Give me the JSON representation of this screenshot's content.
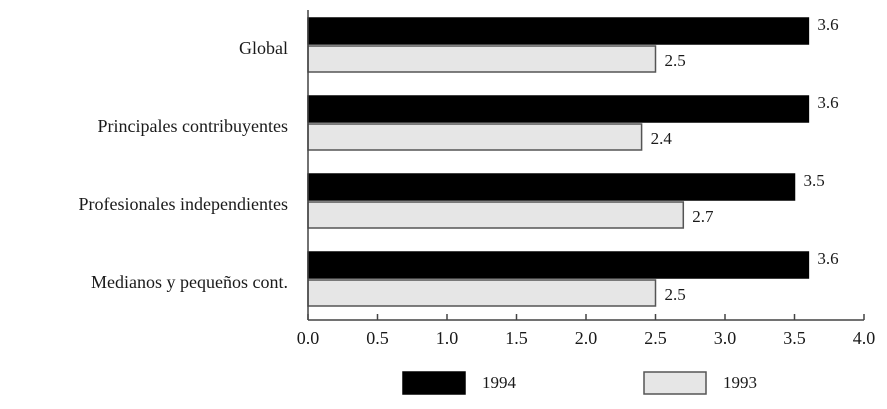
{
  "chart_data": {
    "type": "bar",
    "orientation": "horizontal",
    "categories": [
      "Global",
      "Principales contribuyentes",
      "Profesionales independientes",
      "Medianos y pequeños cont."
    ],
    "series": [
      {
        "name": "1994",
        "values": [
          3.6,
          3.6,
          3.5,
          3.6
        ],
        "labels": [
          "3.6",
          "3.6",
          "3.5",
          "3.6"
        ],
        "color": "#000000"
      },
      {
        "name": "1993",
        "values": [
          2.5,
          2.4,
          2.7,
          2.5
        ],
        "labels": [
          "2.5",
          "2.4",
          "2.7",
          "2.5"
        ],
        "color": "#e6e6e6"
      }
    ],
    "xlim": [
      0,
      4
    ],
    "xticks": [
      0,
      0.5,
      1,
      1.5,
      2,
      2.5,
      3,
      3.5,
      4
    ],
    "xtick_labels": [
      "0.0",
      "0.5",
      "1.0",
      "1.5",
      "2.0",
      "2.5",
      "3.0",
      "3.5",
      "4.0"
    ],
    "title": "",
    "xlabel": "",
    "ylabel": "",
    "grid": false,
    "legend_position": "bottom"
  }
}
